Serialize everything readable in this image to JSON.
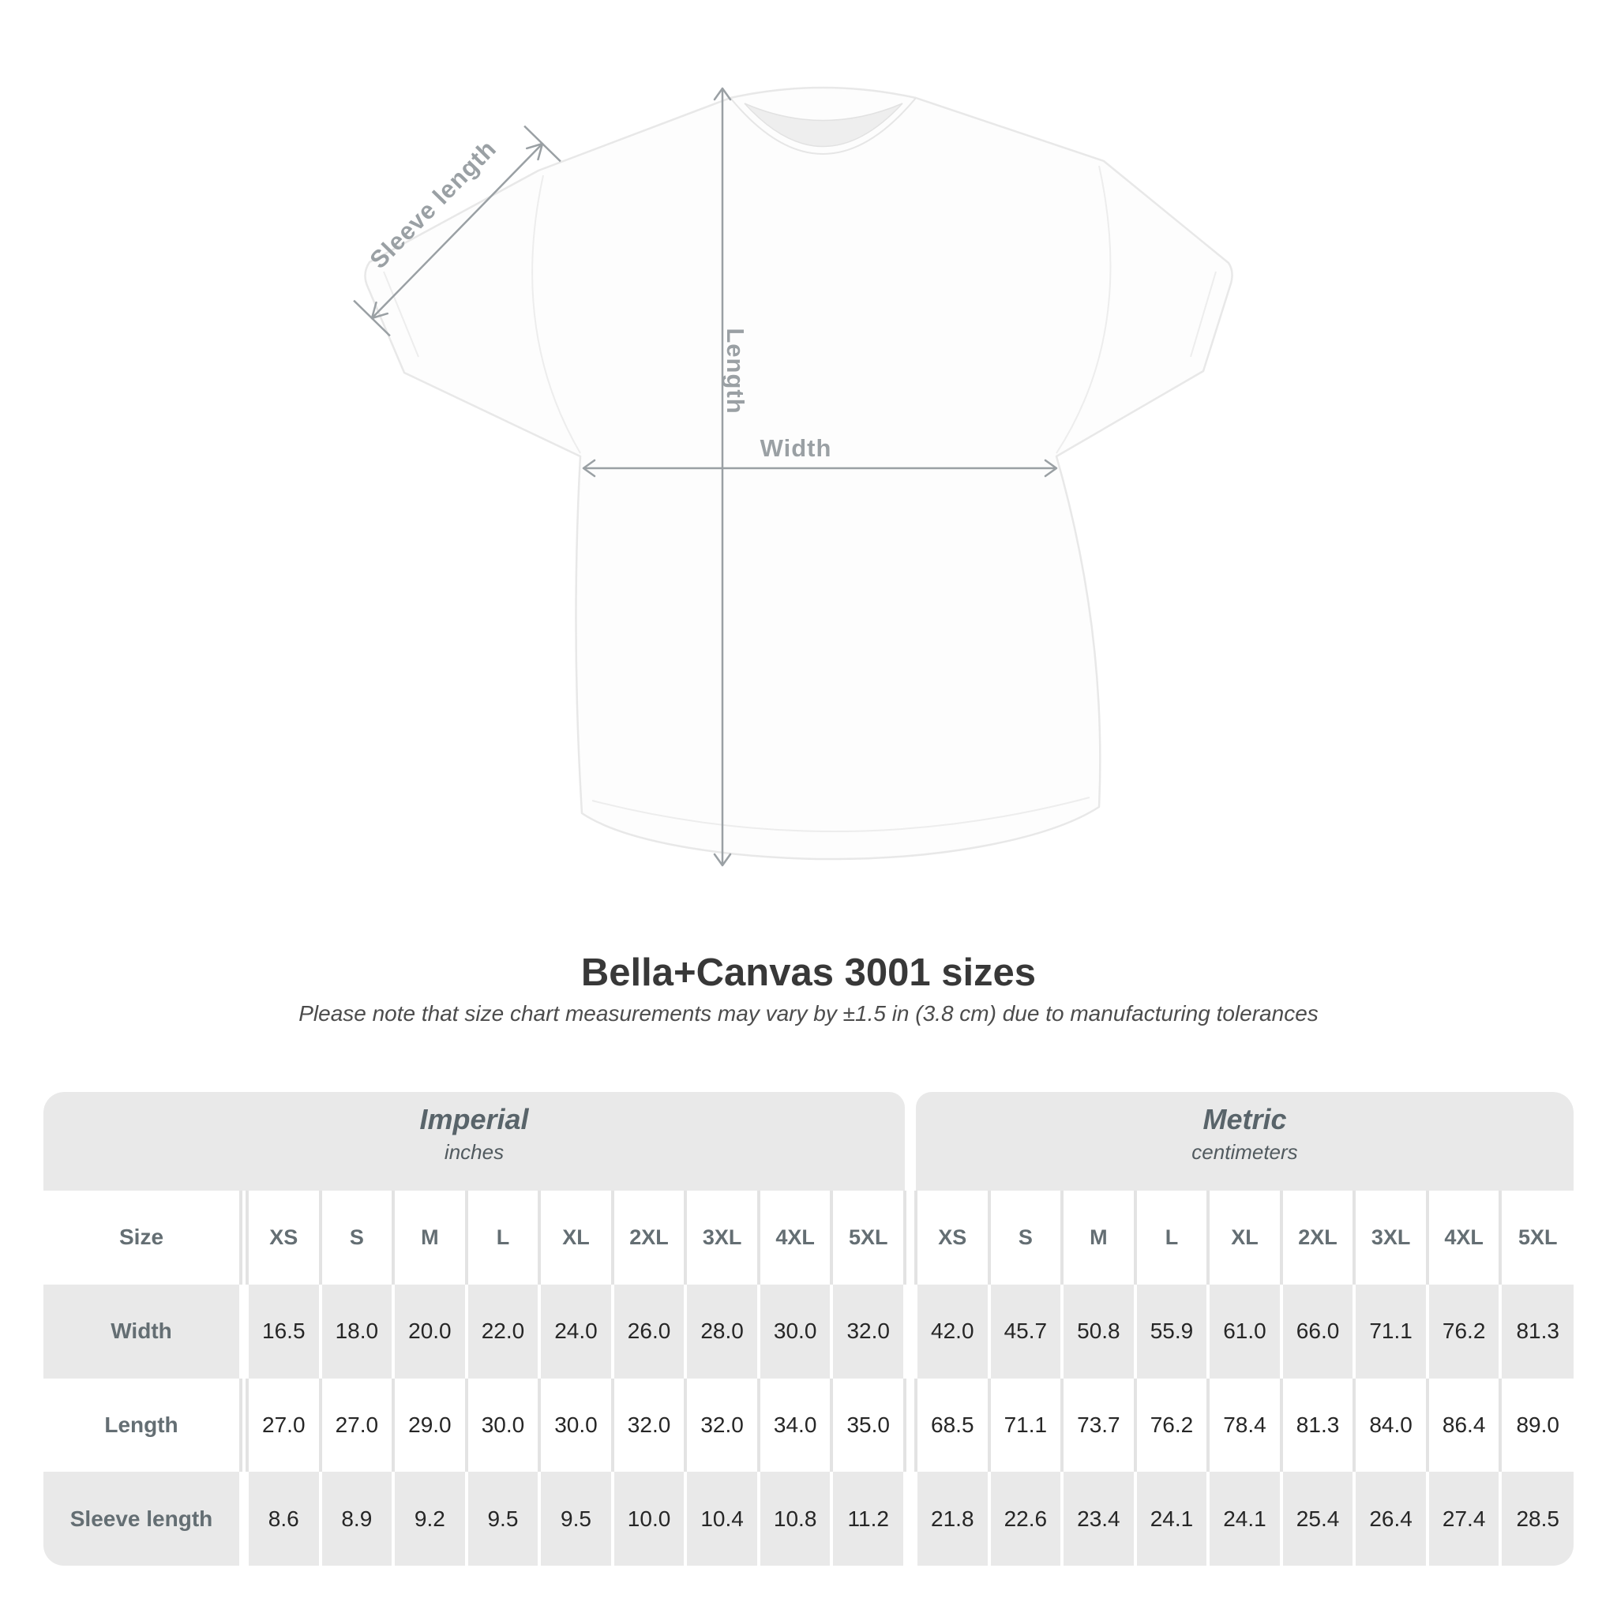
{
  "diagram": {
    "sleeve_length_label": "Sleeve length",
    "length_label": "Length",
    "width_label": "Width"
  },
  "header": {
    "title": "Bella+Canvas 3001 sizes",
    "subtitle": "Please note that size chart measurements may vary by ±1.5 in (3.8 cm) due to manufacturing tolerances"
  },
  "table": {
    "size_column_label": "Size",
    "sections": [
      {
        "label": "Imperial",
        "unit": "inches"
      },
      {
        "label": "Metric",
        "unit": "centimeters"
      }
    ],
    "sizes": [
      "XS",
      "S",
      "M",
      "L",
      "XL",
      "2XL",
      "3XL",
      "4XL",
      "5XL"
    ],
    "rows": [
      {
        "label": "Width",
        "imperial": [
          "16.5",
          "18.0",
          "20.0",
          "22.0",
          "24.0",
          "26.0",
          "28.0",
          "30.0",
          "32.0"
        ],
        "metric": [
          "42.0",
          "45.7",
          "50.8",
          "55.9",
          "61.0",
          "66.0",
          "71.1",
          "76.2",
          "81.3"
        ]
      },
      {
        "label": "Length",
        "imperial": [
          "27.0",
          "27.0",
          "29.0",
          "30.0",
          "30.0",
          "32.0",
          "32.0",
          "34.0",
          "35.0"
        ],
        "metric": [
          "68.5",
          "71.1",
          "73.7",
          "76.2",
          "78.4",
          "81.3",
          "84.0",
          "86.4",
          "89.0"
        ]
      },
      {
        "label": "Sleeve length",
        "imperial": [
          "8.6",
          "8.9",
          "9.2",
          "9.5",
          "9.5",
          "10.0",
          "10.4",
          "10.8",
          "11.2"
        ],
        "metric": [
          "21.8",
          "22.6",
          "23.4",
          "24.1",
          "24.1",
          "25.4",
          "26.4",
          "27.4",
          "28.5"
        ]
      }
    ]
  },
  "chart_data": {
    "type": "table",
    "title": "Bella+Canvas 3001 sizes",
    "columns": [
      "XS",
      "S",
      "M",
      "L",
      "XL",
      "2XL",
      "3XL",
      "4XL",
      "5XL"
    ],
    "units": {
      "imperial": "inches",
      "metric": "centimeters"
    },
    "rows": [
      {
        "label": "Width",
        "imperial": [
          16.5,
          18.0,
          20.0,
          22.0,
          24.0,
          26.0,
          28.0,
          30.0,
          32.0
        ],
        "metric": [
          42.0,
          45.7,
          50.8,
          55.9,
          61.0,
          66.0,
          71.1,
          76.2,
          81.3
        ]
      },
      {
        "label": "Length",
        "imperial": [
          27.0,
          27.0,
          29.0,
          30.0,
          30.0,
          32.0,
          32.0,
          34.0,
          35.0
        ],
        "metric": [
          68.5,
          71.1,
          73.7,
          76.2,
          78.4,
          81.3,
          84.0,
          86.4,
          89.0
        ]
      },
      {
        "label": "Sleeve length",
        "imperial": [
          8.6,
          8.9,
          9.2,
          9.5,
          9.5,
          10.0,
          10.4,
          10.8,
          11.2
        ],
        "metric": [
          21.8,
          22.6,
          23.4,
          24.1,
          24.1,
          25.4,
          26.4,
          27.4,
          28.5
        ]
      }
    ]
  },
  "colors": {
    "stripe_gray": "#e9e9e9",
    "line_on_white": "#e3e3e3",
    "label_gray": "#646e73",
    "value_dark": "#262626",
    "diagram_gray": "#9aa0a4",
    "title_dark": "#383838"
  }
}
